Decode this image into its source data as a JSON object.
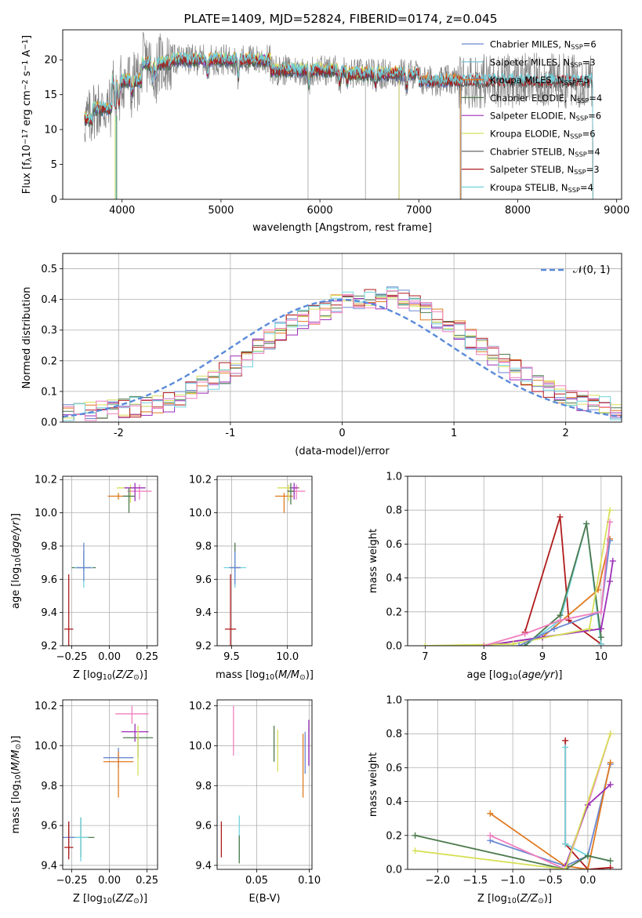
{
  "chart_data": [
    {
      "id": "spectrum",
      "type": "line",
      "title": "PLATE=1409, MJD=52824, FIBERID=0174, z=0.045",
      "xlabel": "wavelength [Angstrom, rest frame]",
      "ylabel": "Flux [f_λ10^-17 erg cm^-2 s^-1 A^-1]",
      "xlim": [
        3400,
        9050
      ],
      "ylim": [
        0,
        24.3
      ],
      "xticks": [
        4000,
        5000,
        6000,
        7000,
        8000,
        9000
      ],
      "yticks": [
        0,
        5,
        10,
        15,
        20
      ],
      "grid": false,
      "legend_position": "upper-right",
      "data_series": {
        "name": "data",
        "x_range": [
          3620,
          8760
        ],
        "level": [
          12,
          17.5,
          20,
          19,
          18
        ],
        "color": "#808080"
      },
      "series": [
        {
          "name": "Chabrier MILES, N_SSP=6",
          "color": "#6a87d1",
          "x_range": [
            3620,
            7420
          ]
        },
        {
          "name": "Salpeter MILES, N_SSP=3",
          "color": "#6abfd1",
          "x_range": [
            3620,
            7420
          ]
        },
        {
          "name": "Kroupa MILES, N_SSP=5",
          "color": "#e07a1f",
          "x_range": [
            3620,
            7420
          ]
        },
        {
          "name": "Chabrier ELODIE, N_SSP=4",
          "color": "#4d7a4d",
          "x_range": [
            3620,
            6800
          ]
        },
        {
          "name": "Salpeter ELODIE, N_SSP=6",
          "color": "#9b2fb8",
          "x_range": [
            3620,
            6800
          ]
        },
        {
          "name": "Kroupa ELODIE, N_SSP=6",
          "color": "#d7e05a",
          "x_range": [
            3620,
            6800
          ]
        },
        {
          "name": "Chabrier STELIB, N_SSP=4",
          "color": "#555555",
          "x_range": [
            3620,
            8760
          ]
        },
        {
          "name": "Salpeter STELIB, N_SSP=3",
          "color": "#b01c1c",
          "x_range": [
            3620,
            8760
          ]
        },
        {
          "name": "Kroupa STELIB, N_SSP=4",
          "color": "#6fd3dd",
          "x_range": [
            3620,
            8760
          ]
        }
      ]
    },
    {
      "id": "residuals",
      "type": "line",
      "xlabel": "(data-model)/error",
      "ylabel": "Normed distribution",
      "xlim": [
        -2.5,
        2.5
      ],
      "ylim": [
        0,
        0.55
      ],
      "xticks": [
        -2,
        -1,
        0,
        1,
        2
      ],
      "yticks": [
        0.0,
        0.1,
        0.2,
        0.3,
        0.4,
        0.5
      ],
      "grid": true,
      "legend": {
        "label": "𝒩(0, 1)",
        "position": "upper-right"
      },
      "gaussian": {
        "mu": 0,
        "sigma": 1,
        "color": "#5b8bd9"
      },
      "bin_width": 0.1,
      "hist_colors": [
        "#6a87d1",
        "#e07a1f",
        "#4d7a4d",
        "#9b2fb8",
        "#d7e05a",
        "#b01c1c",
        "#6fd3dd",
        "#f07fbf"
      ],
      "hist_profile": {
        "x": [
          -2.5,
          -2.0,
          -1.5,
          -1.0,
          -0.5,
          0.0,
          0.5,
          1.0,
          1.5,
          2.0,
          2.5
        ],
        "y": [
          0.025,
          0.04,
          0.07,
          0.17,
          0.31,
          0.39,
          0.41,
          0.31,
          0.18,
          0.08,
          0.035
        ]
      }
    },
    {
      "id": "age-vs-z",
      "type": "scatter",
      "xlabel": "Z [log10(Z/Z⊙)]",
      "ylabel": "age  [log10(age/yr)]",
      "xlim": [
        -0.31,
        0.32
      ],
      "ylim": [
        9.2,
        10.22
      ],
      "xticks": [
        -0.25,
        0.0,
        0.25
      ],
      "xtick_labels": [
        "−0.25",
        "0.00",
        "0.25"
      ],
      "yticks": [
        9.2,
        9.4,
        9.6,
        9.8,
        10.0,
        10.2
      ],
      "grid": true,
      "points": [
        {
          "x": -0.17,
          "y": 9.67,
          "xerr": 0.08,
          "yerr": [
            0.02,
            0.1
          ],
          "color": "#4d7a4d"
        },
        {
          "x": -0.17,
          "y": 9.67,
          "xerr": 0.06,
          "yerr": [
            0.12,
            0.08
          ],
          "color": "#6fd3dd"
        },
        {
          "x": -0.17,
          "y": 9.67,
          "xerr": 0.05,
          "yerr": [
            0.08,
            0.15
          ],
          "color": "#6a87d1"
        },
        {
          "x": -0.27,
          "y": 9.3,
          "xerr": 0.03,
          "yerr": [
            0.1,
            0.33
          ],
          "color": "#b01c1c"
        },
        {
          "x": 0.06,
          "y": 10.1,
          "xerr": 0.07,
          "yerr": [
            0.02,
            0.02
          ],
          "color": "#e07a1f"
        },
        {
          "x": 0.14,
          "y": 10.15,
          "xerr": 0.09,
          "yerr": [
            0.09,
            0.02
          ],
          "color": "#d7e05a"
        },
        {
          "x": 0.2,
          "y": 10.13,
          "xerr": 0.08,
          "yerr": [
            0.05,
            0.04
          ],
          "color": "#f07fbf"
        },
        {
          "x": 0.17,
          "y": 10.15,
          "xerr": 0.07,
          "yerr": [
            0.08,
            0.03
          ],
          "color": "#9b2fb8"
        },
        {
          "x": 0.13,
          "y": 10.1,
          "xerr": 0.04,
          "yerr": [
            0.1,
            0.05
          ],
          "color": "#4d7a4d"
        }
      ]
    },
    {
      "id": "age-vs-mass",
      "type": "scatter",
      "xlabel": "mass [log10(M/M⊙)]",
      "ylabel": "",
      "xlim": [
        9.37,
        10.22
      ],
      "ylim": [
        9.2,
        10.22
      ],
      "xticks": [
        9.5,
        10.0
      ],
      "xtick_labels": [
        "9.5",
        "10.0"
      ],
      "yticks": [
        9.2,
        9.4,
        9.6,
        9.8,
        10.0,
        10.2
      ],
      "grid": true,
      "points": [
        {
          "x": 9.53,
          "y": 9.67,
          "xerr": 0.05,
          "yerr": [
            0.02,
            0.15
          ],
          "color": "#4d7a4d"
        },
        {
          "x": 9.53,
          "y": 9.67,
          "xerr": 0.1,
          "yerr": [
            0.12,
            0.08
          ],
          "color": "#6fd3dd"
        },
        {
          "x": 9.53,
          "y": 9.67,
          "xerr": 0.05,
          "yerr": [
            0.1,
            0.1
          ],
          "color": "#6a87d1"
        },
        {
          "x": 9.49,
          "y": 9.3,
          "xerr": 0.05,
          "yerr": [
            0.12,
            0.33
          ],
          "color": "#b01c1c"
        },
        {
          "x": 9.97,
          "y": 10.1,
          "xerr": 0.08,
          "yerr": [
            0.1,
            0.02
          ],
          "color": "#e07a1f"
        },
        {
          "x": 10.01,
          "y": 10.15,
          "xerr": 0.1,
          "yerr": [
            0.08,
            0.02
          ],
          "color": "#d7e05a"
        },
        {
          "x": 10.08,
          "y": 10.13,
          "xerr": 0.08,
          "yerr": [
            0.05,
            0.04
          ],
          "color": "#f07fbf"
        },
        {
          "x": 10.06,
          "y": 10.15,
          "xerr": 0.04,
          "yerr": [
            0.07,
            0.03
          ],
          "color": "#9b2fb8"
        },
        {
          "x": 10.03,
          "y": 10.13,
          "xerr": 0.03,
          "yerr": [
            0.08,
            0.05
          ],
          "color": "#4d7a4d"
        }
      ]
    },
    {
      "id": "weight-vs-age",
      "type": "line",
      "xlabel": "age  [log10(age/yr)]",
      "ylabel": "mass weight",
      "xlim": [
        6.7,
        10.35
      ],
      "ylim": [
        0,
        1.0
      ],
      "xticks": [
        7,
        8,
        9,
        10
      ],
      "xtick_labels": [
        "7",
        "8",
        "9",
        "10"
      ],
      "yticks": [
        0.0,
        0.2,
        0.4,
        0.6,
        0.8,
        1.0
      ],
      "grid": true,
      "series": [
        {
          "color": "#b01c1c",
          "x": [
            8.7,
            9.3,
            9.45,
            10.0
          ],
          "y": [
            0.08,
            0.76,
            0.15,
            0.01
          ]
        },
        {
          "color": "#6fd3dd",
          "x": [
            8.7,
            9.3,
            9.75,
            10.0
          ],
          "y": [
            0.0,
            0.15,
            0.72,
            0.01
          ]
        },
        {
          "color": "#4d7a4d",
          "x": [
            8.7,
            9.3,
            9.75,
            10.0
          ],
          "y": [
            0.0,
            0.18,
            0.72,
            0.05
          ]
        },
        {
          "color": "#e07a1f",
          "x": [
            8.0,
            9.0,
            9.95,
            10.15
          ],
          "y": [
            0.0,
            0.05,
            0.33,
            0.63
          ]
        },
        {
          "color": "#9b2fb8",
          "x": [
            8.0,
            9.0,
            10.0,
            10.15,
            10.2
          ],
          "y": [
            0.0,
            0.05,
            0.1,
            0.38,
            0.5
          ]
        },
        {
          "color": "#d7e05a",
          "x": [
            7.0,
            8.5,
            9.8,
            10.15
          ],
          "y": [
            0.0,
            0.01,
            0.1,
            0.8
          ]
        },
        {
          "color": "#6a87d1",
          "x": [
            8.6,
            9.2,
            10.0,
            10.15
          ],
          "y": [
            0.0,
            0.1,
            0.2,
            0.62
          ]
        },
        {
          "color": "#f07fbf",
          "x": [
            8.0,
            8.7,
            9.3,
            10.0,
            10.15
          ],
          "y": [
            0.0,
            0.07,
            0.15,
            0.2,
            0.73
          ]
        }
      ]
    },
    {
      "id": "mass-vs-z",
      "type": "scatter",
      "xlabel": "Z [log10(Z/Z⊙)]",
      "ylabel": "mass [log10(M/M⊙)]",
      "xlim": [
        -0.31,
        0.32
      ],
      "ylim": [
        9.38,
        10.23
      ],
      "xticks": [
        -0.25,
        0.0,
        0.25
      ],
      "xtick_labels": [
        "−0.25",
        "0.00",
        "0.25"
      ],
      "yticks": [
        9.4,
        9.6,
        9.8,
        10.0,
        10.2
      ],
      "grid": true,
      "points": [
        {
          "x": -0.19,
          "y": 9.54,
          "xerr": 0.09,
          "yerr": [
            0.1,
            0.1
          ],
          "color": "#4d7a4d"
        },
        {
          "x": -0.19,
          "y": 9.54,
          "xerr": 0.05,
          "yerr": [
            0.12,
            0.1
          ],
          "color": "#6fd3dd"
        },
        {
          "x": -0.27,
          "y": 9.54,
          "xerr": 0.04,
          "yerr": [
            0.09,
            0.08
          ],
          "color": "#6a87d1"
        },
        {
          "x": -0.27,
          "y": 9.49,
          "xerr": 0.03,
          "yerr": [
            0.06,
            0.13
          ],
          "color": "#b01c1c"
        },
        {
          "x": 0.06,
          "y": 9.94,
          "xerr": 0.1,
          "yerr": [
            0.05,
            0.05
          ],
          "color": "#6a87d1"
        },
        {
          "x": 0.06,
          "y": 9.92,
          "xerr": 0.1,
          "yerr": [
            0.18,
            0.05
          ],
          "color": "#e07a1f"
        },
        {
          "x": 0.15,
          "y": 10.16,
          "xerr": 0.11,
          "yerr": [
            0.05,
            0.04
          ],
          "color": "#f07fbf"
        },
        {
          "x": 0.17,
          "y": 10.07,
          "xerr": 0.09,
          "yerr": [
            0.05,
            0.04
          ],
          "color": "#9b2fb8"
        },
        {
          "x": 0.19,
          "y": 10.04,
          "xerr": 0.1,
          "yerr": [
            0.1,
            0.0
          ],
          "color": "#4d7a4d"
        },
        {
          "x": 0.19,
          "y": 10.0,
          "xerr": 0.0,
          "yerr": [
            0.15,
            0.1
          ],
          "color": "#d7e05a"
        }
      ]
    },
    {
      "id": "mass-vs-ebv",
      "type": "scatter",
      "xlabel": "E(B-V)",
      "ylabel": "",
      "xlim": [
        0.0125,
        0.1025
      ],
      "ylim": [
        9.38,
        10.23
      ],
      "xticks": [
        0.05,
        0.1
      ],
      "xtick_labels": [
        "0.05",
        "0.10"
      ],
      "yticks": [
        9.4,
        9.6,
        9.8,
        10.0,
        10.2
      ],
      "grid": true,
      "points": [
        {
          "x": 0.0165,
          "y": 9.53,
          "xerr": 0,
          "yerr": [
            0.09,
            0.09
          ],
          "color": "#b01c1c"
        },
        {
          "x": 0.0335,
          "y": 9.55,
          "xerr": 0,
          "yerr": [
            0.12,
            0.1
          ],
          "color": "#6fd3dd"
        },
        {
          "x": 0.0335,
          "y": 9.5,
          "xerr": 0,
          "yerr": [
            0.09,
            0.05
          ],
          "color": "#4d7a4d"
        },
        {
          "x": 0.028,
          "y": 10.08,
          "xerr": 0,
          "yerr": [
            0.13,
            0.12
          ],
          "color": "#f07fbf"
        },
        {
          "x": 0.0665,
          "y": 10.01,
          "xerr": 0,
          "yerr": [
            0.09,
            0.09
          ],
          "color": "#4d7a4d"
        },
        {
          "x": 0.07,
          "y": 9.98,
          "xerr": 0,
          "yerr": [
            0.11,
            0.1
          ],
          "color": "#d7e05a"
        },
        {
          "x": 0.094,
          "y": 9.9,
          "xerr": 0,
          "yerr": [
            0.16,
            0.16
          ],
          "color": "#e07a1f"
        },
        {
          "x": 0.096,
          "y": 9.97,
          "xerr": 0,
          "yerr": [
            0.11,
            0.1
          ],
          "color": "#6a87d1"
        },
        {
          "x": 0.0995,
          "y": 10.02,
          "xerr": 0,
          "yerr": [
            0.12,
            0.11
          ],
          "color": "#9b2fb8"
        }
      ]
    },
    {
      "id": "weight-vs-z",
      "type": "line",
      "xlabel": "Z [log10(Z/Z⊙)]",
      "ylabel": "mass weight",
      "xlim": [
        -2.4,
        0.45
      ],
      "ylim": [
        0,
        1.0
      ],
      "xticks": [
        -2.0,
        -1.5,
        -1.0,
        -0.5,
        0.0
      ],
      "xtick_labels": [
        "−2.0",
        "−1.5",
        "−1.0",
        "−0.5",
        "0.0"
      ],
      "yticks": [
        0.0,
        0.2,
        0.4,
        0.6,
        0.8,
        1.0
      ],
      "grid": true,
      "series": [
        {
          "color": "#b01c1c",
          "x": [
            -0.3,
            -0.3,
            0.0,
            0.3
          ],
          "y": [
            0.76,
            0.15,
            0.0,
            0.01
          ]
        },
        {
          "color": "#6fd3dd",
          "x": [
            -0.3,
            -0.3,
            0.0,
            0.3
          ],
          "y": [
            0.72,
            0.15,
            0.08,
            0.05
          ]
        },
        {
          "color": "#6a87d1",
          "x": [
            -1.3,
            -0.3,
            0.0,
            0.3
          ],
          "y": [
            0.17,
            0.02,
            0.08,
            0.62
          ]
        },
        {
          "color": "#e07a1f",
          "x": [
            -1.3,
            -0.3,
            0.0,
            0.3
          ],
          "y": [
            0.33,
            0.02,
            0.0,
            0.63
          ]
        },
        {
          "color": "#f07fbf",
          "x": [
            -1.3,
            -0.3,
            0.0,
            0.3
          ],
          "y": [
            0.2,
            0.0,
            0.38,
            0.8
          ]
        },
        {
          "color": "#9b2fb8",
          "x": [
            -0.3,
            0.0,
            0.3
          ],
          "y": [
            0.02,
            0.38,
            0.5
          ]
        },
        {
          "color": "#4d7a4d",
          "x": [
            -2.3,
            -0.3,
            0.0,
            0.3
          ],
          "y": [
            0.2,
            0.0,
            0.08,
            0.05
          ]
        },
        {
          "color": "#d7e05a",
          "x": [
            -2.3,
            -0.3,
            0.3
          ],
          "y": [
            0.11,
            0.0,
            0.8
          ]
        }
      ]
    }
  ]
}
